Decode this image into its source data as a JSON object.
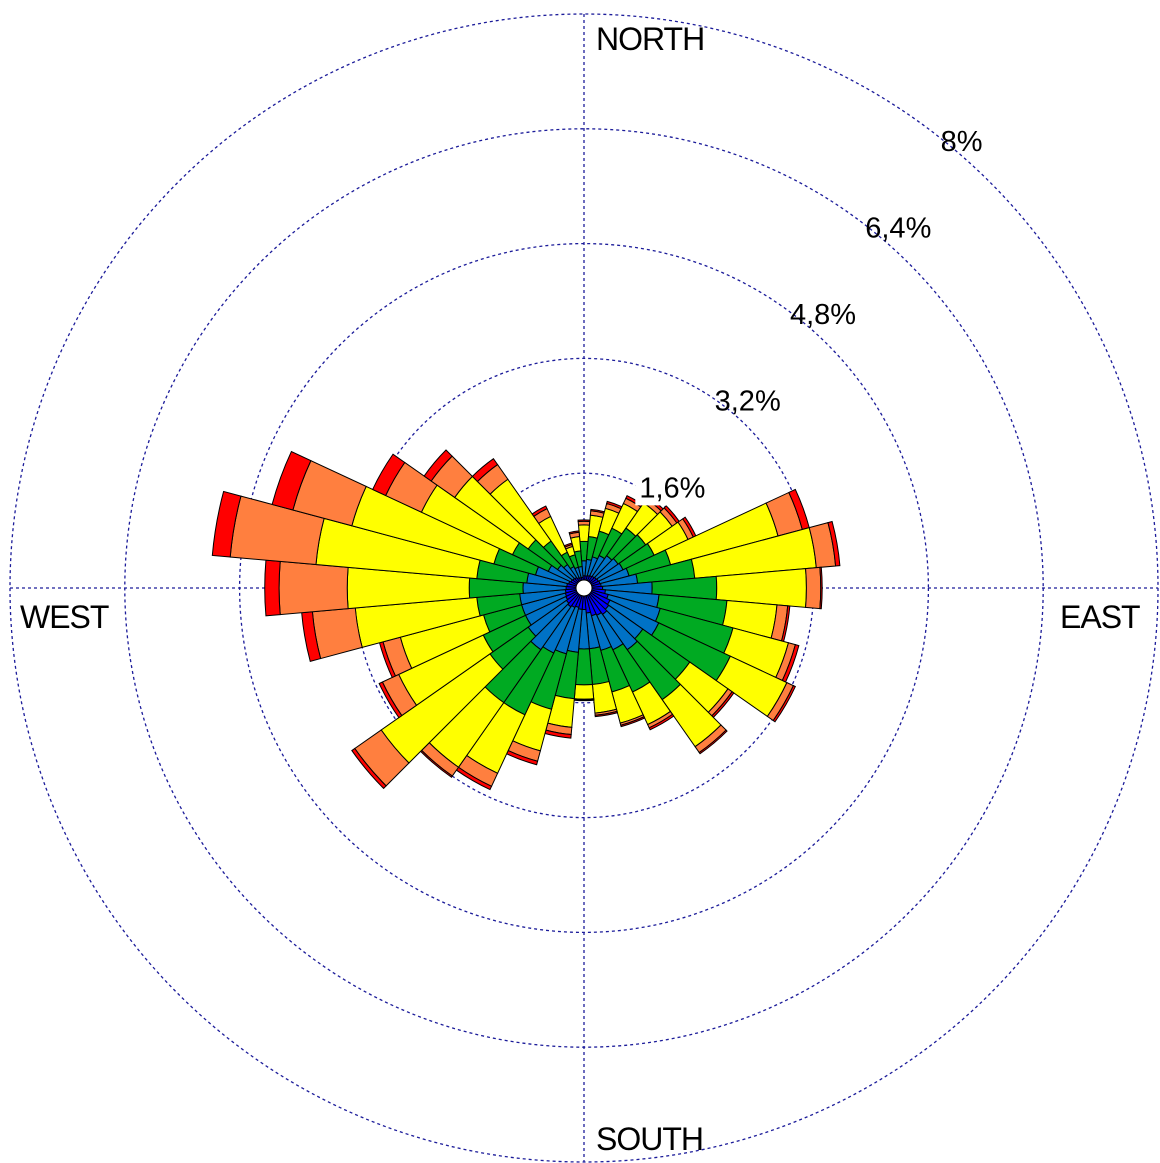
{
  "chart_data": {
    "type": "windrose",
    "directions_count": 36,
    "direction_labels": {
      "north": "NORTH",
      "east": "EAST",
      "south": "SOUTH",
      "west": "WEST"
    },
    "rings": [
      {
        "value": 1.6,
        "label": "1,6%"
      },
      {
        "value": 3.2,
        "label": "3,2%"
      },
      {
        "value": 4.8,
        "label": "4,8%"
      },
      {
        "value": 6.4,
        "label": "6,4%"
      },
      {
        "value": 8.0,
        "label": "8%"
      }
    ],
    "rmax": 8.0,
    "colors": [
      "#0000ff",
      "#0072c6",
      "#00aa22",
      "#ffff00",
      "#ff7f3f",
      "#ff0000"
    ],
    "directions_deg": [
      0,
      10,
      20,
      30,
      40,
      50,
      60,
      70,
      80,
      90,
      100,
      110,
      120,
      130,
      140,
      150,
      160,
      170,
      180,
      190,
      200,
      210,
      220,
      230,
      240,
      250,
      260,
      270,
      280,
      290,
      300,
      310,
      320,
      330,
      340,
      350
    ],
    "cumulative": [
      [
        0.17,
        0.38,
        0.65,
        0.88,
        0.93,
        0.95
      ],
      [
        0.17,
        0.4,
        0.72,
        1.02,
        1.08,
        1.1
      ],
      [
        0.18,
        0.45,
        0.82,
        1.15,
        1.22,
        1.25
      ],
      [
        0.19,
        0.5,
        0.92,
        1.3,
        1.38,
        1.42
      ],
      [
        0.2,
        0.55,
        1.02,
        1.45,
        1.52,
        1.56
      ],
      [
        0.21,
        0.58,
        1.05,
        1.5,
        1.58,
        1.62
      ],
      [
        0.22,
        0.6,
        1.08,
        1.6,
        1.68,
        1.72
      ],
      [
        0.23,
        0.65,
        1.25,
        2.8,
        3.15,
        3.25
      ],
      [
        0.24,
        0.75,
        1.55,
        3.25,
        3.52,
        3.58
      ],
      [
        0.26,
        0.95,
        1.85,
        3.1,
        3.3,
        3.32
      ],
      [
        0.3,
        1.05,
        2.0,
        2.7,
        2.85,
        2.88
      ],
      [
        0.35,
        1.1,
        2.15,
        2.95,
        3.05,
        3.1
      ],
      [
        0.4,
        1.15,
        2.25,
        3.12,
        3.22,
        3.25
      ],
      [
        0.42,
        1.0,
        1.8,
        2.45,
        2.52,
        2.55
      ],
      [
        0.45,
        1.05,
        1.9,
        2.7,
        2.8,
        2.82
      ],
      [
        0.42,
        0.95,
        1.6,
        2.1,
        2.15,
        2.18
      ],
      [
        0.4,
        0.9,
        1.5,
        1.95,
        1.98,
        2.0
      ],
      [
        0.35,
        0.85,
        1.35,
        1.75,
        1.78,
        1.8
      ],
      [
        0.3,
        0.85,
        1.35,
        1.55,
        1.56,
        1.57
      ],
      [
        0.3,
        0.9,
        1.55,
        1.95,
        2.05,
        2.1
      ],
      [
        0.28,
        0.95,
        1.75,
        2.35,
        2.5,
        2.55
      ],
      [
        0.3,
        1.0,
        1.95,
        2.85,
        3.05,
        3.1
      ],
      [
        0.32,
        1.05,
        1.95,
        3.05,
        3.2,
        3.22
      ],
      [
        0.3,
        0.95,
        1.6,
        3.45,
        3.9,
        3.95
      ],
      [
        0.28,
        0.9,
        1.55,
        2.85,
        3.1,
        3.15
      ],
      [
        0.27,
        0.9,
        1.45,
        2.65,
        2.9,
        2.95
      ],
      [
        0.26,
        0.9,
        1.5,
        3.2,
        3.8,
        3.95
      ],
      [
        0.25,
        0.85,
        1.6,
        3.3,
        4.25,
        4.45
      ],
      [
        0.24,
        0.8,
        1.5,
        3.75,
        4.95,
        5.2
      ],
      [
        0.22,
        0.7,
        1.3,
        3.35,
        4.2,
        4.5
      ],
      [
        0.2,
        0.55,
        1.1,
        2.5,
        3.05,
        3.25
      ],
      [
        0.19,
        0.45,
        0.95,
        2.2,
        2.6,
        2.72
      ],
      [
        0.18,
        0.4,
        0.8,
        1.85,
        2.1,
        2.2
      ],
      [
        0.16,
        0.33,
        0.55,
        1.1,
        1.22,
        1.26
      ],
      [
        0.15,
        0.3,
        0.48,
        0.6,
        0.63,
        0.65
      ],
      [
        0.15,
        0.3,
        0.52,
        0.72,
        0.78,
        0.8
      ]
    ]
  }
}
